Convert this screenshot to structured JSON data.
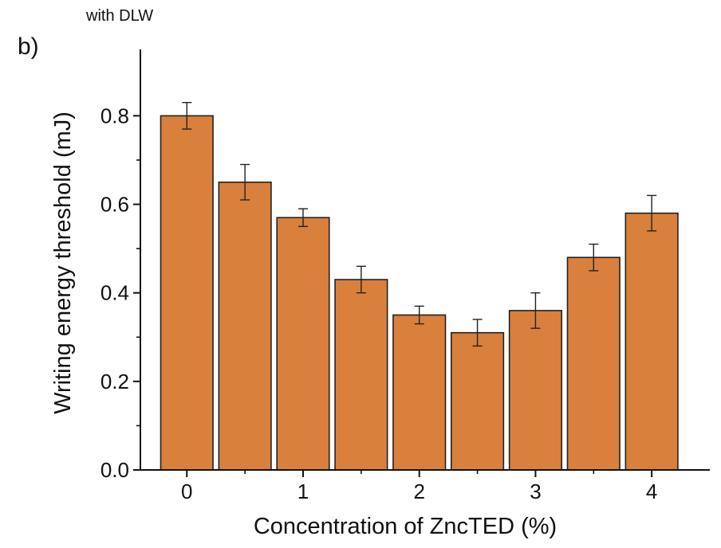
{
  "header_text": "with DLW",
  "panel_label": "b)",
  "chart_data": {
    "type": "bar",
    "xlabel": "Concentration of ZncTED (%)",
    "ylabel": "Writing energy threshold (mJ)",
    "x": [
      0,
      0.5,
      1,
      1.5,
      2,
      2.5,
      3,
      3.5,
      4
    ],
    "values": [
      0.8,
      0.65,
      0.57,
      0.43,
      0.35,
      0.31,
      0.36,
      0.48,
      0.58
    ],
    "errors": [
      0.03,
      0.04,
      0.02,
      0.03,
      0.02,
      0.03,
      0.04,
      0.03,
      0.04
    ],
    "xlim": [
      -0.4,
      4.5
    ],
    "ylim": [
      0,
      0.95
    ],
    "x_ticks": [
      0,
      1,
      2,
      3,
      4
    ],
    "x_tick_labels": [
      "0",
      "1",
      "2",
      "3",
      "4"
    ],
    "y_ticks": [
      0.0,
      0.2,
      0.4,
      0.6,
      0.8
    ],
    "y_tick_labels": [
      "0.0",
      "0.2",
      "0.4",
      "0.6",
      "0.8"
    ],
    "bar_color": "#D9803C",
    "bar_edge_color": "#222222",
    "grid": false,
    "legend": "none"
  }
}
